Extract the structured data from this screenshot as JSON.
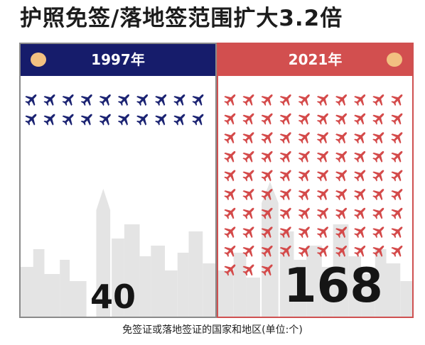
{
  "title": "护照免签/落地签范围扩大3.2倍",
  "caption": "免签证或落地签证的国家和地区(单位:个)",
  "colors": {
    "left_header": "#161c6b",
    "right_header": "#d24f4f",
    "left_plane": "#1b2372",
    "right_plane": "#d44a4a",
    "dot": "#f2c181",
    "skyline": "#e3e3e3"
  },
  "icons": {
    "marker": "plane-icon",
    "header_dot": "circle-dot-icon"
  },
  "chart_data": {
    "type": "bar",
    "categories": [
      "1997年",
      "2021年"
    ],
    "values": [
      40,
      168
    ],
    "title": "护照免签/落地签范围扩大3.2倍",
    "xlabel": "",
    "ylabel": "",
    "unit_note": "免签证或落地签证的国家和地区(单位:个)",
    "icon_count": [
      20,
      93
    ]
  },
  "panels": [
    {
      "year": "1997年",
      "value": "40"
    },
    {
      "year": "2021年",
      "value": "168"
    }
  ]
}
